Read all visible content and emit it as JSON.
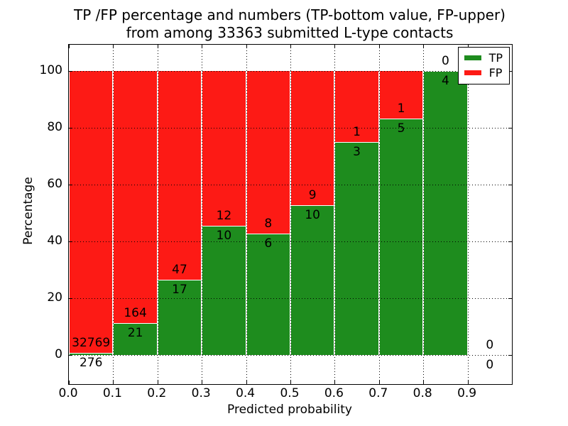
{
  "chart_data": {
    "type": "bar",
    "stacked": true,
    "title_line1": "TP /FP percentage and numbers (TP-bottom value, FP-upper)",
    "title_line2": "from among 33363 submitted L-type contacts",
    "xlabel": "Predicted probability",
    "ylabel": "Percentage",
    "xlim": [
      0.0,
      1.0
    ],
    "ylim": [
      -10.25,
      109.25
    ],
    "xticks": [
      "0.0",
      "0.1",
      "0.2",
      "0.3",
      "0.4",
      "0.5",
      "0.6",
      "0.7",
      "0.8",
      "0.9"
    ],
    "yticks": [
      0,
      20,
      40,
      60,
      80,
      100
    ],
    "grid_style": "dotted",
    "legend_position": "upper right",
    "legend": [
      {
        "name": "TP",
        "color": "#1e8c1e"
      },
      {
        "name": "FP",
        "color": "#fd1a15"
      }
    ],
    "annotation_rule": "FP count above green/red boundary, TP count below it",
    "bins": [
      {
        "range": [
          0.0,
          0.1
        ],
        "tp": 276,
        "fp": 32769,
        "tp_pct": 0.84
      },
      {
        "range": [
          0.1,
          0.2
        ],
        "tp": 21,
        "fp": 164,
        "tp_pct": 11.35
      },
      {
        "range": [
          0.2,
          0.3
        ],
        "tp": 17,
        "fp": 47,
        "tp_pct": 26.56
      },
      {
        "range": [
          0.3,
          0.4
        ],
        "tp": 10,
        "fp": 12,
        "tp_pct": 45.45
      },
      {
        "range": [
          0.4,
          0.5
        ],
        "tp": 6,
        "fp": 8,
        "tp_pct": 42.86
      },
      {
        "range": [
          0.5,
          0.6
        ],
        "tp": 10,
        "fp": 9,
        "tp_pct": 52.63
      },
      {
        "range": [
          0.6,
          0.7
        ],
        "tp": 3,
        "fp": 1,
        "tp_pct": 75.0
      },
      {
        "range": [
          0.7,
          0.8
        ],
        "tp": 5,
        "fp": 1,
        "tp_pct": 83.33
      },
      {
        "range": [
          0.8,
          0.9
        ],
        "tp": 4,
        "fp": 0,
        "tp_pct": 100.0
      },
      {
        "range": [
          0.9,
          1.0
        ],
        "tp": 0,
        "fp": 0,
        "tp_pct": 0.0
      }
    ]
  }
}
